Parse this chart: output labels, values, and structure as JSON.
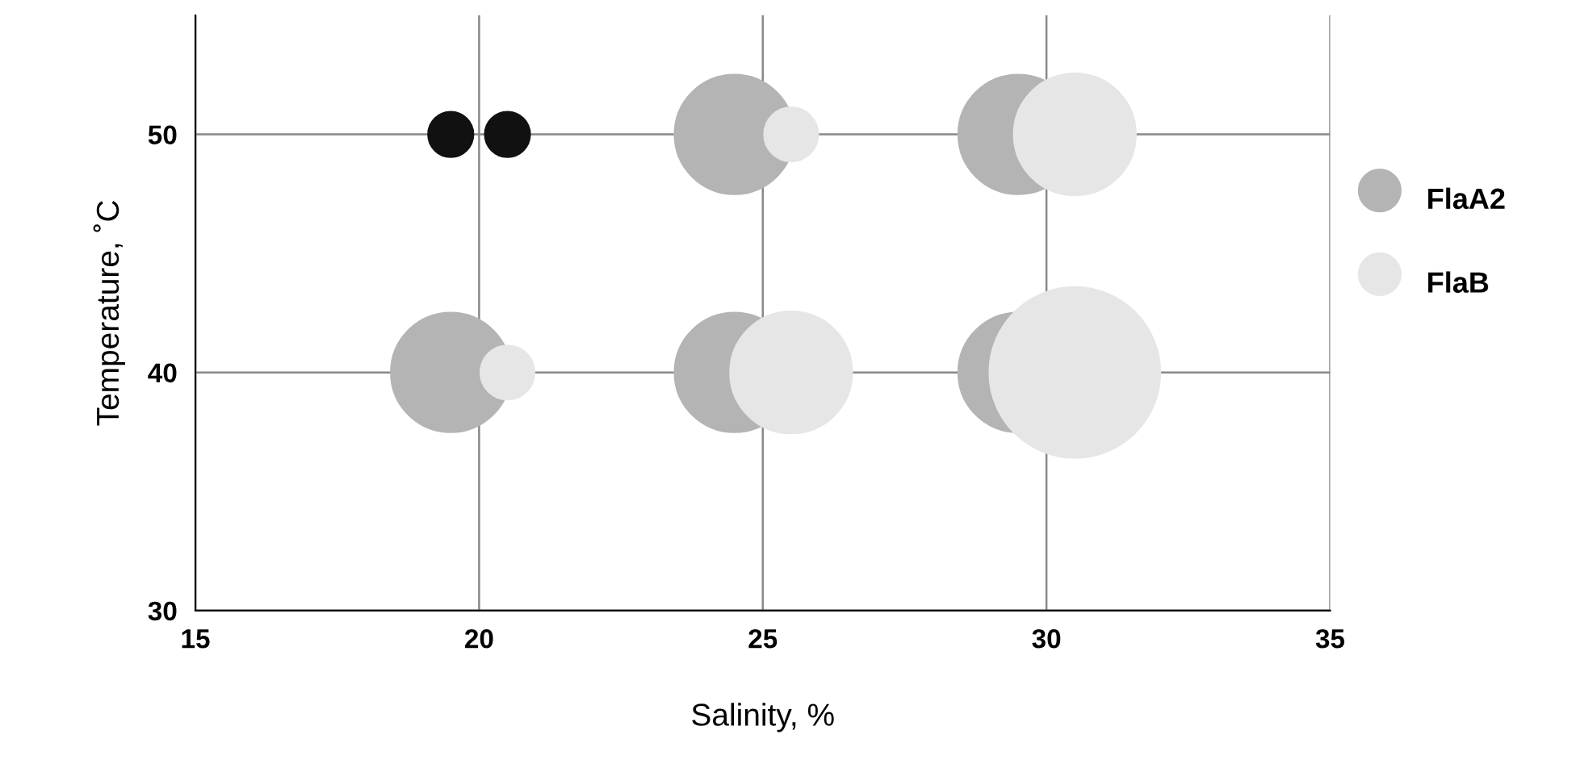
{
  "chart_data": {
    "type": "bubble",
    "xlabel": "Salinity, %",
    "ylabel": "Temperature, ˚C",
    "xlim": [
      15,
      35
    ],
    "xticks": [
      15,
      20,
      25,
      30,
      35
    ],
    "ylim": [
      30,
      55
    ],
    "yticks": [
      30,
      40,
      50
    ],
    "grid": true,
    "legend": "right",
    "series": [
      {
        "name": "FlaA2",
        "color": "#b4b4b4",
        "colors": [
          "#111111",
          "#b4b4b4",
          "#b4b4b4",
          "#b4b4b4",
          "#b4b4b4",
          "#b4b4b4"
        ],
        "x": [
          19.5,
          24.5,
          29.5,
          19.5,
          24.5,
          29.5
        ],
        "values": [
          50,
          50,
          50,
          40,
          40,
          40
        ],
        "sizes": [
          0.07,
          0.49,
          0.49,
          0.49,
          0.49,
          0.49
        ]
      },
      {
        "name": "FlaB",
        "color": "#e6e6e6",
        "colors": [
          "#111111",
          "#e6e6e6",
          "#e6e6e6",
          "#e6e6e6",
          "#e6e6e6",
          "#e6e6e6"
        ],
        "x": [
          20.5,
          25.5,
          30.5,
          20.5,
          25.5,
          30.5
        ],
        "values": [
          50,
          50,
          50,
          40,
          40,
          40
        ],
        "sizes": [
          0.07,
          0.1,
          0.51,
          0.1,
          0.51,
          1
        ]
      }
    ]
  }
}
